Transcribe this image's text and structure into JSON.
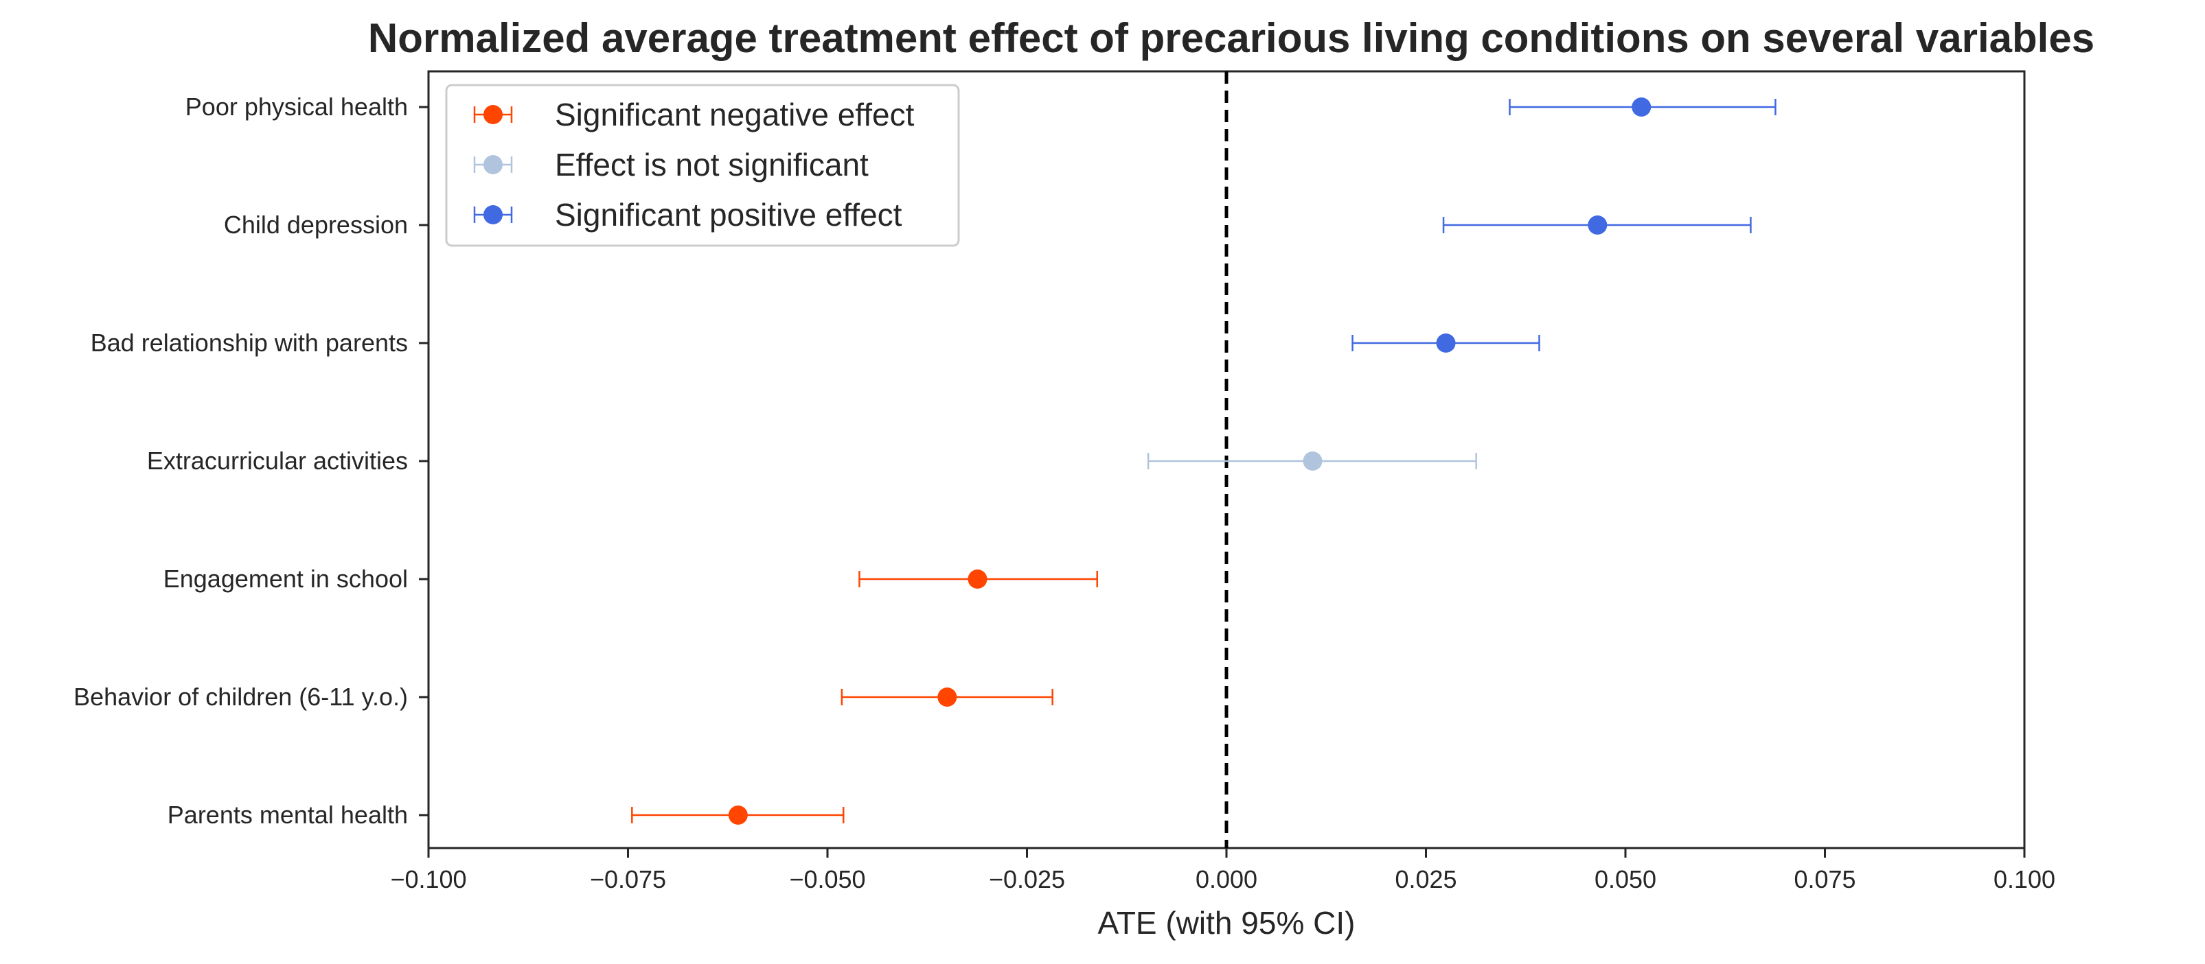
{
  "chart_data": {
    "type": "scatter",
    "title": "Normalized average treatment effect of precarious living conditions on several variables",
    "xlabel": "ATE (with 95% CI)",
    "ylabel": "",
    "xlim": [
      -0.1,
      0.1
    ],
    "xticks": [
      -0.1,
      -0.075,
      -0.05,
      -0.025,
      0.0,
      0.025,
      0.05,
      0.075,
      0.1
    ],
    "xtick_labels": [
      "−0.100",
      "−0.075",
      "−0.050",
      "−0.025",
      "0.000",
      "0.025",
      "0.050",
      "0.075",
      "0.100"
    ],
    "reference_line": {
      "x": 0.0,
      "style": "dashed",
      "color": "#000000"
    },
    "grid": false,
    "legend_position": "top-left",
    "legend": [
      {
        "key": "negative",
        "label": "Significant negative effect",
        "color": "#ff4500"
      },
      {
        "key": "ns",
        "label": "Effect is not significant",
        "color": "#b0c4de"
      },
      {
        "key": "positive",
        "label": "Significant positive effect",
        "color": "#4169e1"
      }
    ],
    "points": [
      {
        "category": "Poor physical health",
        "ate": 0.052,
        "ci_low": 0.0355,
        "ci_high": 0.0688,
        "significance": "positive"
      },
      {
        "category": "Child depression",
        "ate": 0.0465,
        "ci_low": 0.0272,
        "ci_high": 0.0657,
        "significance": "positive"
      },
      {
        "category": "Bad relationship with parents",
        "ate": 0.0275,
        "ci_low": 0.0158,
        "ci_high": 0.0392,
        "significance": "positive"
      },
      {
        "category": "Extracurricular activities",
        "ate": 0.0108,
        "ci_low": -0.0098,
        "ci_high": 0.0313,
        "significance": "ns"
      },
      {
        "category": "Engagement in school",
        "ate": -0.0312,
        "ci_low": -0.046,
        "ci_high": -0.0162,
        "significance": "negative"
      },
      {
        "category": "Behavior of children (6-11 y.o.)",
        "ate": -0.035,
        "ci_low": -0.0482,
        "ci_high": -0.0218,
        "significance": "negative"
      },
      {
        "category": "Parents mental health",
        "ate": -0.0612,
        "ci_low": -0.0745,
        "ci_high": -0.048,
        "significance": "negative"
      }
    ]
  }
}
